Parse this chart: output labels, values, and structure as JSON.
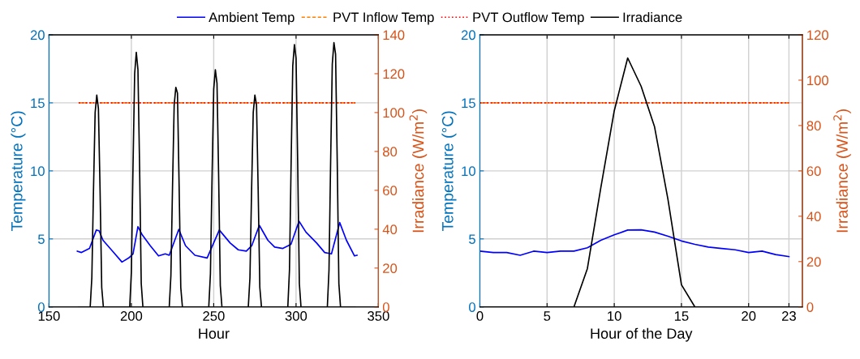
{
  "chart_data": [
    {
      "type": "line",
      "xlabel": "Hour",
      "ylabel": "Temperature (°C)",
      "y2label": "Irradiance (W/m$^{2}$)",
      "xlim": [
        150,
        350
      ],
      "xticks": [
        150,
        200,
        250,
        300,
        350
      ],
      "ylim": [
        0,
        20
      ],
      "yticks": [
        0,
        5,
        10,
        15,
        20
      ],
      "y2lim": [
        0,
        140
      ],
      "y2ticks": [
        0,
        20,
        40,
        60,
        80,
        100,
        120,
        140
      ],
      "grid": true,
      "legend": "top",
      "series": [
        {
          "name": "Ambient Temp",
          "color": "#0000ff",
          "line_style": "solid",
          "x": [
            167.2,
            169.7,
            174.6,
            178.7,
            180.4,
            182.8,
            188.6,
            194.3,
            198.4,
            201,
            204,
            206.6,
            211.5,
            216.5,
            220.6,
            223,
            228.8,
            232.9,
            238.6,
            246,
            248.5,
            253.4,
            260,
            264.9,
            269.8,
            273.1,
            277.7,
            282.9,
            287,
            292,
            296.9,
            301.8,
            306,
            312.5,
            317.4,
            321.5,
            326.5,
            330.6,
            335.5,
            337
          ],
          "values": [
            4.1,
            4.0,
            4.3,
            5.65,
            5.6,
            4.9,
            4.1,
            3.3,
            3.6,
            3.9,
            5.9,
            5.3,
            4.5,
            3.75,
            3.9,
            3.8,
            5.7,
            4.5,
            3.8,
            3.6,
            4.3,
            5.65,
            4.7,
            4.2,
            4.1,
            4.5,
            6.0,
            4.9,
            4.4,
            4.3,
            4.6,
            6.3,
            5.5,
            4.7,
            4.0,
            3.9,
            6.2,
            4.9,
            3.75,
            3.8
          ]
        },
        {
          "name": "PVT Inflow Temp",
          "color": "#ff8000",
          "line_style": "dashed",
          "x": [
            168,
            336
          ],
          "values": [
            15,
            15
          ]
        },
        {
          "name": "PVT Outflow Temp",
          "color": "#ff0000",
          "line_style": "dotted",
          "x": [
            168,
            336
          ],
          "values": [
            15,
            15
          ]
        },
        {
          "name": "Irradiance",
          "color": "#000000",
          "line_style": "solid",
          "axis": "y2",
          "x": [
            168,
            175,
            176,
            177,
            178,
            179,
            180,
            181,
            182,
            183,
            199,
            200,
            201,
            202,
            203,
            204,
            205,
            206,
            207,
            223,
            224,
            225,
            226,
            227,
            228,
            229,
            230,
            231,
            247,
            248,
            249,
            250,
            251,
            252,
            253,
            254,
            255,
            271,
            272,
            273,
            274,
            275,
            276,
            277,
            278,
            279,
            295,
            296,
            297,
            298,
            299,
            300,
            301,
            302,
            303,
            319,
            320,
            321,
            322,
            323,
            324,
            325,
            326,
            327,
            336
          ],
          "values": [
            0,
            0,
            15,
            60,
            100,
            109,
            102,
            60,
            10,
            0,
            0,
            18,
            72,
            120,
            131,
            122,
            72,
            12,
            0,
            0,
            16,
            62,
            104,
            113,
            110,
            62,
            10,
            0,
            0,
            17,
            67,
            112,
            122,
            115,
            67,
            11,
            0,
            0,
            15,
            60,
            100,
            109,
            104,
            60,
            10,
            0,
            0,
            19,
            74,
            124,
            135,
            128,
            74,
            12,
            0,
            0,
            19,
            75,
            125,
            136,
            130,
            75,
            12,
            0,
            0
          ]
        }
      ]
    },
    {
      "type": "line",
      "xlabel": "Hour of the Day",
      "ylabel": "Temperature (°C)",
      "y2label": "Irradiance (W/m$^{2}$)",
      "xlim": [
        0,
        24
      ],
      "xticks": [
        0,
        5,
        10,
        15,
        20,
        23
      ],
      "ylim": [
        0,
        20
      ],
      "yticks": [
        0,
        5,
        10,
        15,
        20
      ],
      "y2lim": [
        0,
        120
      ],
      "y2ticks": [
        0,
        20,
        40,
        60,
        80,
        100,
        120
      ],
      "grid": true,
      "series": [
        {
          "color": "#0000ff",
          "line_style": "solid",
          "x": [
            0,
            1,
            2,
            3,
            4,
            5,
            6,
            7,
            8,
            9,
            10,
            11,
            12,
            13,
            14,
            15,
            16,
            17,
            18,
            19,
            20,
            21,
            22,
            23
          ],
          "values": [
            4.1,
            4.0,
            4.0,
            3.8,
            4.1,
            4.0,
            4.1,
            4.1,
            4.35,
            4.9,
            5.3,
            5.65,
            5.67,
            5.5,
            5.2,
            4.85,
            4.6,
            4.4,
            4.3,
            4.2,
            4.0,
            4.1,
            3.85,
            3.7
          ]
        },
        {
          "color": "#ff8000",
          "line_style": "dashed",
          "x": [
            0,
            23
          ],
          "values": [
            15,
            15
          ]
        },
        {
          "color": "#ff0000",
          "line_style": "dotted",
          "x": [
            0,
            23
          ],
          "values": [
            15,
            15
          ]
        },
        {
          "color": "#000000",
          "line_style": "solid",
          "axis": "y2",
          "x": [
            0,
            1,
            2,
            3,
            4,
            5,
            6,
            7,
            8,
            9,
            10,
            11,
            12,
            13,
            14,
            15,
            16,
            17,
            18,
            19,
            20,
            21,
            22,
            23
          ],
          "values": [
            0,
            0,
            0,
            0,
            0,
            0,
            0,
            0,
            16.9,
            52.6,
            86.5,
            109.8,
            97.3,
            79.4,
            47.3,
            9.8,
            0,
            0,
            0,
            0,
            0,
            0,
            0,
            0
          ]
        }
      ]
    }
  ]
}
